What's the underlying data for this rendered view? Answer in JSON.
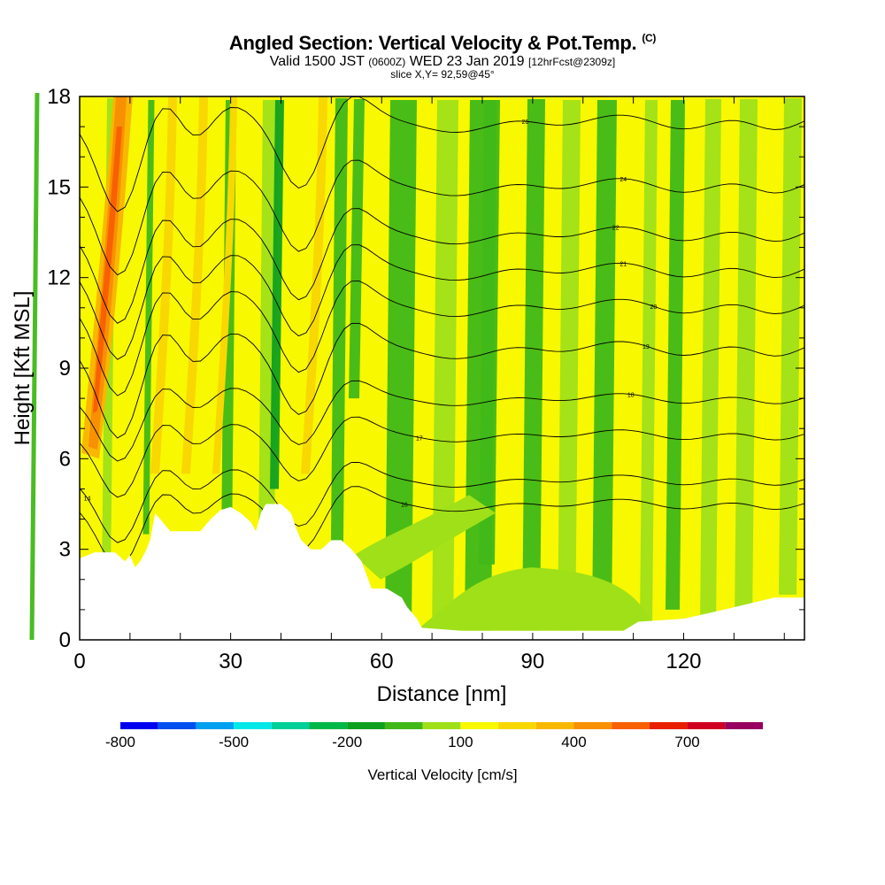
{
  "header": {
    "title": "Angled Section: Vertical Velocity & Pot.Temp.",
    "title_unit": "(C)",
    "valid_label": "Valid 1500 JST",
    "utc_label": "(0600Z)",
    "date_label": "WED 23 Jan 2019",
    "forecast_label": "[12hrFcst@2309z]",
    "slice_label": "slice X,Y= 92,59@45°"
  },
  "chart_data": {
    "type": "heatmap",
    "xlabel": "Distance [nm]",
    "ylabel": "Height [Kft MSL]",
    "xlim": [
      0,
      144
    ],
    "ylim": [
      0,
      18
    ],
    "x_ticks": [
      0,
      30,
      60,
      90,
      120
    ],
    "y_ticks": [
      0,
      3,
      6,
      9,
      12,
      15,
      18
    ],
    "colorbar": {
      "label": "Vertical Velocity [cm/s]",
      "tick_labels": [
        "-800",
        "-500",
        "-200",
        "100",
        "400",
        "700"
      ],
      "tick_values": [
        -800,
        -500,
        -200,
        100,
        400,
        700
      ],
      "levels": [
        -800,
        -700,
        -600,
        -500,
        -400,
        -300,
        -200,
        -100,
        0,
        100,
        200,
        300,
        400,
        500,
        600,
        700,
        800,
        900
      ],
      "colors": [
        "#0000f0",
        "#0050f0",
        "#00a0f0",
        "#00e8e8",
        "#00d098",
        "#00b848",
        "#10a020",
        "#40b818",
        "#a0e018",
        "#f8f800",
        "#f8d800",
        "#f8b800",
        "#f89000",
        "#f86000",
        "#e82000",
        "#d00020",
        "#980060"
      ]
    },
    "terrain_kft": [
      [
        0,
        2.7
      ],
      [
        3,
        2.9
      ],
      [
        7,
        2.9
      ],
      [
        9,
        2.6
      ],
      [
        10,
        2.8
      ],
      [
        11,
        2.4
      ],
      [
        12,
        2.6
      ],
      [
        13,
        2.9
      ],
      [
        14,
        3.3
      ],
      [
        15,
        4.2
      ],
      [
        18,
        3.6
      ],
      [
        20,
        3.6
      ],
      [
        24,
        3.6
      ],
      [
        26,
        4.0
      ],
      [
        28,
        4.3
      ],
      [
        30,
        4.4
      ],
      [
        32,
        4.2
      ],
      [
        34,
        3.9
      ],
      [
        35,
        3.6
      ],
      [
        36,
        4.2
      ],
      [
        37,
        4.5
      ],
      [
        40,
        4.5
      ],
      [
        42,
        4.2
      ],
      [
        43,
        3.7
      ],
      [
        44,
        3.3
      ],
      [
        46,
        3.0
      ],
      [
        48,
        3.0
      ],
      [
        50,
        3.3
      ],
      [
        52,
        3.3
      ],
      [
        54,
        3.0
      ],
      [
        56,
        2.6
      ],
      [
        58,
        1.7
      ],
      [
        61,
        1.7
      ],
      [
        64,
        1.4
      ],
      [
        65,
        1.1
      ],
      [
        67,
        0.7
      ],
      [
        68,
        0.4
      ],
      [
        76,
        0.3
      ],
      [
        108,
        0.3
      ],
      [
        111,
        0.6
      ],
      [
        120,
        0.7
      ],
      [
        128,
        1.0
      ],
      [
        138,
        1.4
      ],
      [
        144,
        1.4
      ]
    ],
    "theta_isentropes_C": [
      {
        "label": "14",
        "label_x": 2,
        "base_kft": 5.4
      },
      {
        "label": "16",
        "label_x": 65,
        "base_kft": 4.6
      },
      {
        "label": "17",
        "label_x": 68,
        "base_kft": 6.9
      },
      {
        "label": "18",
        "label_x": 109,
        "base_kft": 8.1
      },
      {
        "label": "19",
        "label_x": 112,
        "base_kft": 9.8
      },
      {
        "label": "20",
        "label_x": 114,
        "base_kft": 11.2
      },
      {
        "label": "21",
        "label_x": 108,
        "base_kft": 12.4
      },
      {
        "label": "22",
        "label_x": 107,
        "base_kft": 13.6
      },
      {
        "label": "24",
        "label_x": 108,
        "base_kft": 15.2
      },
      {
        "label": "26",
        "label_x": 88,
        "base_kft": 17.3
      }
    ],
    "grid": false
  }
}
